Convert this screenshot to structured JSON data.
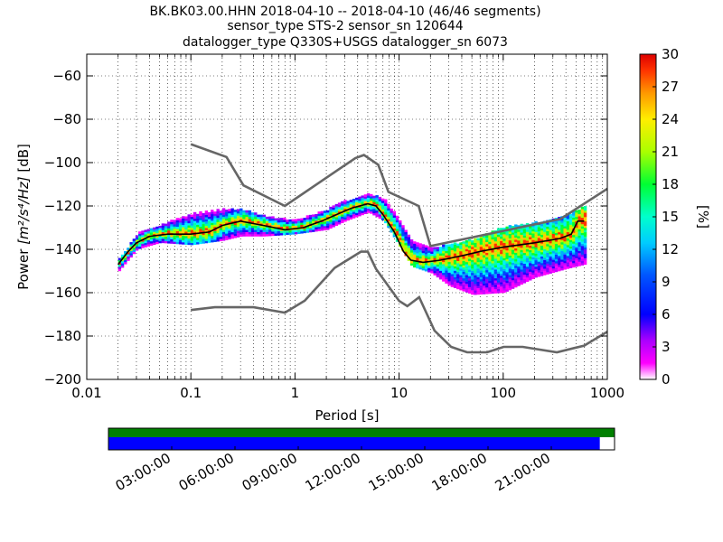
{
  "title_lines": [
    "BK.BK03.00.HHN   2018-04-10 -- 2018-04-10  (46/46 segments)",
    "sensor_type STS-2 sensor_sn 120644",
    "datalogger_type Q330S+USGS datalogger_sn 6073"
  ],
  "chart_data": {
    "type": "heatmap",
    "title": "BK.BK03.00.HHN   2018-04-10 -- 2018-04-10  (46/46 segments)",
    "xlabel": "Period [s]",
    "ylabel_prefix": "Power ",
    "ylabel_units": "[m²/s⁴/Hz]",
    "ylabel_suffix": " [dB]",
    "xscale": "log",
    "xlim": [
      0.01,
      1000
    ],
    "ylim": [
      -200,
      -50
    ],
    "x_ticks": [
      0.01,
      0.1,
      1,
      10,
      100,
      1000
    ],
    "x_tick_labels": [
      "0.01",
      "0.1",
      "1",
      "10",
      "100",
      "1000"
    ],
    "y_ticks": [
      -200,
      -180,
      -160,
      -140,
      -120,
      -100,
      -80,
      -60
    ],
    "y_tick_labels": [
      "−200",
      "−180",
      "−160",
      "−140",
      "−120",
      "−100",
      "−80",
      "−60"
    ],
    "grid": true,
    "colorbar": {
      "label": "[%]",
      "min": 0,
      "max": 30,
      "ticks": [
        0,
        3,
        6,
        9,
        12,
        15,
        18,
        21,
        24,
        27,
        30
      ]
    },
    "mean_curve": [
      [
        0.02,
        -147
      ],
      [
        0.025,
        -141
      ],
      [
        0.03,
        -137
      ],
      [
        0.04,
        -134
      ],
      [
        0.06,
        -133
      ],
      [
        0.1,
        -133
      ],
      [
        0.15,
        -132
      ],
      [
        0.2,
        -129
      ],
      [
        0.3,
        -127
      ],
      [
        0.5,
        -129
      ],
      [
        0.8,
        -131
      ],
      [
        1.2,
        -130
      ],
      [
        1.8,
        -127
      ],
      [
        2.5,
        -124
      ],
      [
        3.5,
        -121
      ],
      [
        5,
        -119
      ],
      [
        6,
        -120
      ],
      [
        7,
        -124
      ],
      [
        9,
        -132
      ],
      [
        11,
        -141
      ],
      [
        13,
        -145
      ],
      [
        17,
        -146
      ],
      [
        25,
        -145
      ],
      [
        40,
        -143
      ],
      [
        60,
        -141
      ],
      [
        100,
        -139
      ],
      [
        200,
        -137
      ],
      [
        350,
        -135
      ],
      [
        450,
        -133
      ],
      [
        520,
        -127
      ],
      [
        600,
        -127
      ]
    ],
    "psd_spread": [
      [
        0.02,
        -150,
        -145
      ],
      [
        0.03,
        -140,
        -133
      ],
      [
        0.05,
        -137,
        -129
      ],
      [
        0.1,
        -138,
        -124
      ],
      [
        0.2,
        -136,
        -122
      ],
      [
        0.3,
        -134,
        -122
      ],
      [
        0.5,
        -134,
        -125
      ],
      [
        1,
        -133,
        -127
      ],
      [
        2,
        -131,
        -122
      ],
      [
        3,
        -127,
        -118
      ],
      [
        5,
        -123,
        -115
      ],
      [
        7,
        -127,
        -117
      ],
      [
        10,
        -139,
        -127
      ],
      [
        13,
        -148,
        -137
      ],
      [
        20,
        -151,
        -140
      ],
      [
        30,
        -157,
        -138
      ],
      [
        50,
        -161,
        -136
      ],
      [
        100,
        -160,
        -130
      ],
      [
        200,
        -153,
        -128
      ],
      [
        400,
        -149,
        -125
      ],
      [
        600,
        -147,
        -120
      ],
      [
        610,
        -147,
        -120
      ]
    ],
    "nhnm": [
      [
        0.1,
        -91.5
      ],
      [
        0.22,
        -97.4
      ],
      [
        0.32,
        -110.5
      ],
      [
        0.8,
        -120
      ],
      [
        3.8,
        -97.9
      ],
      [
        4.6,
        -96.5
      ],
      [
        6.3,
        -101
      ],
      [
        7.9,
        -113.5
      ],
      [
        15.4,
        -120
      ],
      [
        20,
        -138.5
      ],
      [
        354.8,
        -126
      ],
      [
        1000,
        -112.1
      ]
    ],
    "nlnm": [
      [
        0.1,
        -168
      ],
      [
        0.17,
        -166.7
      ],
      [
        0.4,
        -166.7
      ],
      [
        0.8,
        -169.2
      ],
      [
        1.24,
        -163.7
      ],
      [
        2.4,
        -148.6
      ],
      [
        4.3,
        -141.1
      ],
      [
        5,
        -141.1
      ],
      [
        6,
        -149
      ],
      [
        10,
        -163.8
      ],
      [
        12,
        -166.2
      ],
      [
        15.6,
        -162.1
      ],
      [
        21.9,
        -177.5
      ],
      [
        31.6,
        -185
      ],
      [
        45,
        -187.5
      ],
      [
        70,
        -187.5
      ],
      [
        101,
        -185
      ],
      [
        154,
        -185
      ],
      [
        328,
        -187.5
      ],
      [
        600,
        -184.4
      ],
      [
        1000,
        -178
      ]
    ]
  },
  "timeline": {
    "tick_labels": [
      "03:00:00",
      "06:00:00",
      "09:00:00",
      "12:00:00",
      "15:00:00",
      "18:00:00",
      "21:00:00"
    ],
    "tick_hours": [
      3,
      6,
      9,
      12,
      15,
      18,
      21
    ],
    "span_hours": 24,
    "coverage_end_hour": 23.3,
    "data_color": "#008000",
    "coverage_color": "#0000ff"
  },
  "colors": {
    "mean_line": "#000000",
    "noise_model": "#666666"
  }
}
